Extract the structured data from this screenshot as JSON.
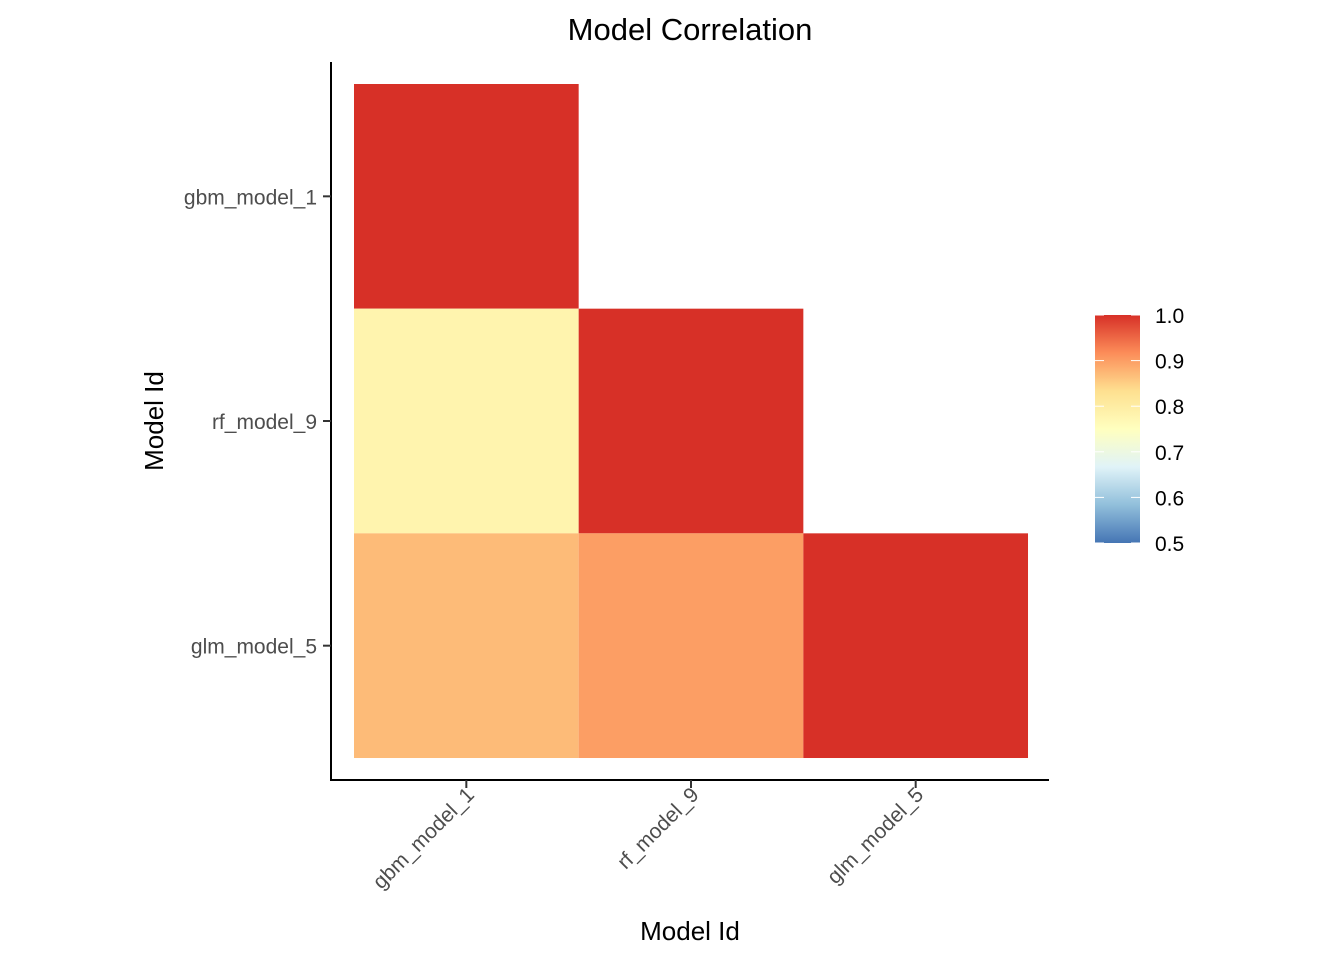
{
  "chart_data": {
    "type": "heatmap",
    "title": "Model Correlation",
    "xlabel": "Model Id",
    "ylabel": "Model Id",
    "x_categories": [
      "gbm_model_1",
      "rf_model_9",
      "glm_model_5"
    ],
    "y_categories": [
      "gbm_model_1",
      "rf_model_9",
      "glm_model_5"
    ],
    "cells": [
      {
        "x": "gbm_model_1",
        "y": "gbm_model_1",
        "value": 1.0
      },
      {
        "x": "gbm_model_1",
        "y": "rf_model_9",
        "value": 0.78
      },
      {
        "x": "rf_model_9",
        "y": "rf_model_9",
        "value": 1.0
      },
      {
        "x": "gbm_model_1",
        "y": "glm_model_5",
        "value": 0.87
      },
      {
        "x": "rf_model_9",
        "y": "glm_model_5",
        "value": 0.9
      },
      {
        "x": "glm_model_5",
        "y": "glm_model_5",
        "value": 1.0
      }
    ],
    "color_scale": {
      "domain": [
        0.5,
        1.0
      ],
      "breaks": [
        "0.5",
        "0.6",
        "0.7",
        "0.8",
        "0.9",
        "1.0"
      ],
      "colors": [
        "#4575B4",
        "#91BFDB",
        "#E0F3F8",
        "#FFFFBF",
        "#FEE090",
        "#FC8D59",
        "#D73027"
      ]
    },
    "legend_position": "right",
    "grid": false
  }
}
